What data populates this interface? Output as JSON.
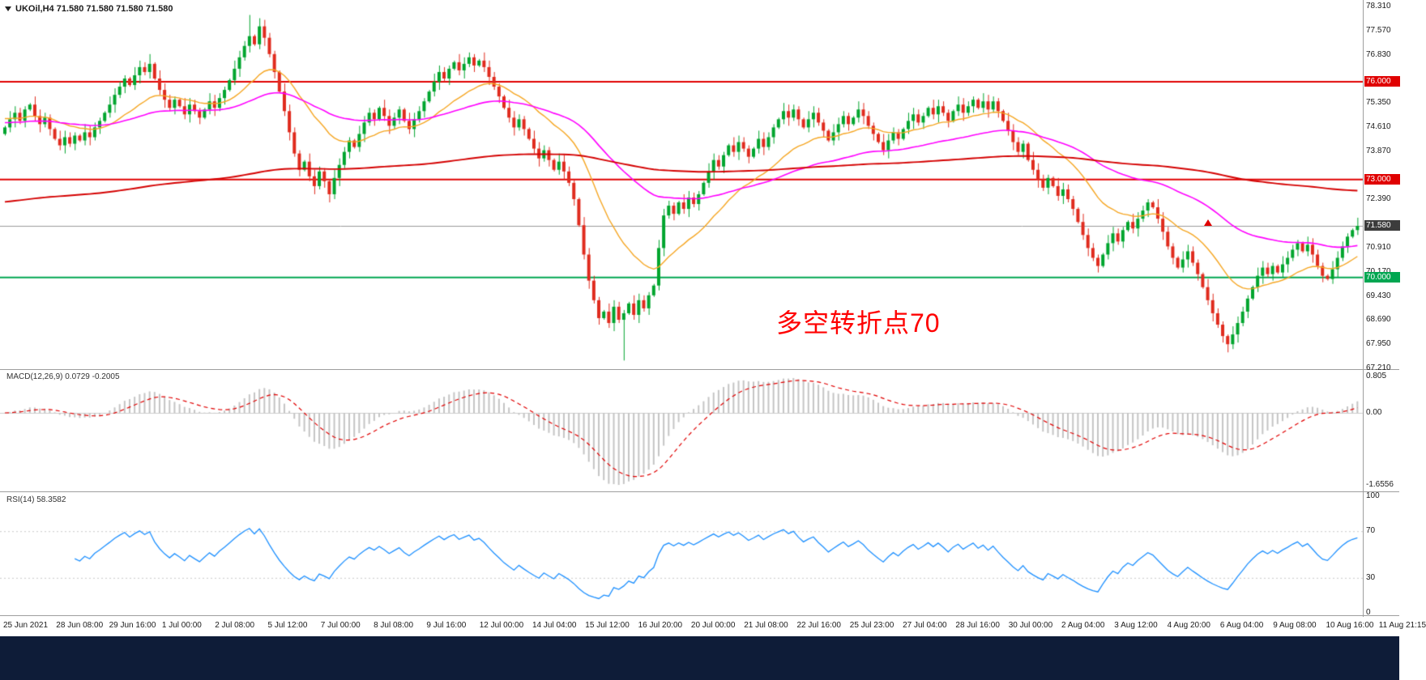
{
  "header": {
    "symbol_info": "UKOil,H4  71.580 71.580 71.580 71.580"
  },
  "indicator_labels": {
    "macd": "MACD(12,26,9) 0.0729 -0.2005",
    "rsi": "RSI(14) 58.3582"
  },
  "annotation": {
    "text": "多空转折点70",
    "color": "#FF0000"
  },
  "colors": {
    "up": "#00A52E",
    "down": "#E02B1E",
    "ma_fast": "#F5A623",
    "ma_mid": "#FF00FF",
    "ma_slow": "#D40000",
    "level_red": "#E00000",
    "level_green": "#00A651",
    "current_line": "#9a9a9a",
    "rsi_line": "#1E90FF",
    "rsi_grid": "#c8c8c8",
    "macd_signal": "#E00000",
    "macd_hist": "#C4C4C4",
    "macd_zero": "#cccccc",
    "badge_current": "#3C3C3C",
    "bottom_bar": "#0E1C38"
  },
  "chart_data": {
    "type": "candlestick",
    "symbol": "UKOil",
    "timeframe": "H4",
    "title": "UKOil H4 candlestick chart with MACD and RSI",
    "price_axis": {
      "min": 67.21,
      "max": 78.31,
      "plain_ticks": [
        {
          "label": "78.310",
          "value": 78.31
        },
        {
          "label": "77.570",
          "value": 77.57
        },
        {
          "label": "76.830",
          "value": 76.83
        },
        {
          "label": "75.350",
          "value": 75.35
        },
        {
          "label": "74.610",
          "value": 74.61
        },
        {
          "label": "73.870",
          "value": 73.87
        },
        {
          "label": "72.390",
          "value": 72.39
        },
        {
          "label": "70.910",
          "value": 70.91
        },
        {
          "label": "70.170",
          "value": 70.17
        },
        {
          "label": "69.430",
          "value": 69.43
        },
        {
          "label": "68.690",
          "value": 68.69
        },
        {
          "label": "67.950",
          "value": 67.95
        },
        {
          "label": "67.210",
          "value": 67.21
        }
      ]
    },
    "levels": [
      {
        "price": 76.0,
        "label": "76.000",
        "color": "#E00000"
      },
      {
        "price": 73.0,
        "label": "73.000",
        "color": "#E00000"
      },
      {
        "price": 70.0,
        "label": "70.000",
        "color": "#00A651"
      }
    ],
    "last_price": {
      "price": 71.58,
      "label": "71.580"
    },
    "first_open": 74.4,
    "closes": [
      74.6,
      74.85,
      75.05,
      74.8,
      75.15,
      75.3,
      74.95,
      74.7,
      74.9,
      74.55,
      74.25,
      74.05,
      74.3,
      74.1,
      74.35,
      74.2,
      74.45,
      74.3,
      74.6,
      74.8,
      75.05,
      75.3,
      75.6,
      75.85,
      76.1,
      75.9,
      76.2,
      76.45,
      76.3,
      76.55,
      76.1,
      75.75,
      75.45,
      75.2,
      75.45,
      75.25,
      75.0,
      75.3,
      75.1,
      74.9,
      75.15,
      75.4,
      75.2,
      75.5,
      75.75,
      76.05,
      76.4,
      76.75,
      77.1,
      77.4,
      77.15,
      77.7,
      77.35,
      76.85,
      76.3,
      75.7,
      75.1,
      74.45,
      73.8,
      73.3,
      73.55,
      73.1,
      72.8,
      73.25,
      72.95,
      72.55,
      73.05,
      73.45,
      73.85,
      74.2,
      74.0,
      74.4,
      74.75,
      75.05,
      74.85,
      75.2,
      74.95,
      74.65,
      74.9,
      75.15,
      74.8,
      74.55,
      74.85,
      75.1,
      75.4,
      75.7,
      76.0,
      76.3,
      76.1,
      76.4,
      76.6,
      76.35,
      76.55,
      76.75,
      76.5,
      76.65,
      76.45,
      76.15,
      75.85,
      75.55,
      75.2,
      74.9,
      74.6,
      74.85,
      74.55,
      74.25,
      73.95,
      73.65,
      73.9,
      73.6,
      73.3,
      73.55,
      73.25,
      72.9,
      72.4,
      71.6,
      70.7,
      69.9,
      69.3,
      68.75,
      68.95,
      68.6,
      69.1,
      68.7,
      68.9,
      69.2,
      68.85,
      69.3,
      69.05,
      69.45,
      69.75,
      70.9,
      71.9,
      72.2,
      71.95,
      72.3,
      72.1,
      72.45,
      72.25,
      72.55,
      72.9,
      73.25,
      73.6,
      73.4,
      73.75,
      74.05,
      73.85,
      74.15,
      73.95,
      73.7,
      73.95,
      74.25,
      74.0,
      74.3,
      74.6,
      74.85,
      75.1,
      74.9,
      75.15,
      74.85,
      74.6,
      74.85,
      75.05,
      74.75,
      74.5,
      74.2,
      74.45,
      74.7,
      74.95,
      74.7,
      74.9,
      75.15,
      74.95,
      74.65,
      74.4,
      74.15,
      73.9,
      74.2,
      74.45,
      74.25,
      74.55,
      74.8,
      75.0,
      74.75,
      74.95,
      75.2,
      75.0,
      75.25,
      75.05,
      74.8,
      75.1,
      75.3,
      75.05,
      75.25,
      75.45,
      75.2,
      75.4,
      75.15,
      75.4,
      75.1,
      74.8,
      74.5,
      74.15,
      73.85,
      74.1,
      73.6,
      73.3,
      73.0,
      72.75,
      73.05,
      72.8,
      72.5,
      72.7,
      72.4,
      72.1,
      71.7,
      71.3,
      70.9,
      70.6,
      70.35,
      70.7,
      71.05,
      71.35,
      71.1,
      71.45,
      71.7,
      71.5,
      71.8,
      72.05,
      72.3,
      72.15,
      71.8,
      71.4,
      70.95,
      70.6,
      70.3,
      70.55,
      70.8,
      70.45,
      70.1,
      69.7,
      69.3,
      68.9,
      68.55,
      68.2,
      67.95,
      68.25,
      68.6,
      68.95,
      69.35,
      69.7,
      70.05,
      70.3,
      70.1,
      70.35,
      70.15,
      70.4,
      70.6,
      70.85,
      71.05,
      70.8,
      71.0,
      70.7,
      70.35,
      70.05,
      69.95,
      70.25,
      70.6,
      70.95,
      71.25,
      71.45,
      71.58
    ],
    "wick_high_overrides": {
      "29": 76.85,
      "49": 78.05,
      "51": 77.95
    },
    "wick_low_overrides": {
      "65": 72.3,
      "124": 67.45,
      "245": 67.7
    },
    "moving_averages": [
      {
        "name": "fast",
        "period": 20,
        "seed": 74.9,
        "color": "#F5A623"
      },
      {
        "name": "mid",
        "period": 60,
        "seed": 74.75,
        "color": "#FF00FF"
      },
      {
        "name": "slow",
        "period": 300,
        "seed": 72.3,
        "color": "#D40000"
      }
    ],
    "macd": {
      "params": "12,26,9",
      "current_macd": 0.0729,
      "current_signal": -0.2005,
      "ticks": [
        {
          "label": "0.805",
          "anchor": "top"
        },
        {
          "label": "0.00",
          "anchor": "zero"
        },
        {
          "label": "-1.6556",
          "anchor": "bottom"
        }
      ]
    },
    "rsi": {
      "period": 14,
      "current": 58.3582,
      "ticks": [
        {
          "label": "100",
          "value": 100
        },
        {
          "label": "70",
          "value": 70
        },
        {
          "label": "30",
          "value": 30
        },
        {
          "label": "0",
          "value": 0
        }
      ],
      "grid_levels": [
        70,
        30
      ]
    },
    "x_labels": [
      "25 Jun 2021",
      "28 Jun 08:00",
      "29 Jun 16:00",
      "1 Jul 00:00",
      "2 Jul 08:00",
      "5 Jul 12:00",
      "7 Jul 00:00",
      "8 Jul 08:00",
      "9 Jul 16:00",
      "12 Jul 00:00",
      "14 Jul 04:00",
      "15 Jul 12:00",
      "16 Jul 20:00",
      "20 Jul 00:00",
      "21 Jul 08:00",
      "22 Jul 16:00",
      "25 Jul 23:00",
      "27 Jul 04:00",
      "28 Jul 16:00",
      "30 Jul 00:00",
      "2 Aug 04:00",
      "3 Aug 12:00",
      "4 Aug 20:00",
      "6 Aug 04:00",
      "9 Aug 08:00",
      "10 Aug 16:00",
      "11 Aug 21:15"
    ]
  }
}
